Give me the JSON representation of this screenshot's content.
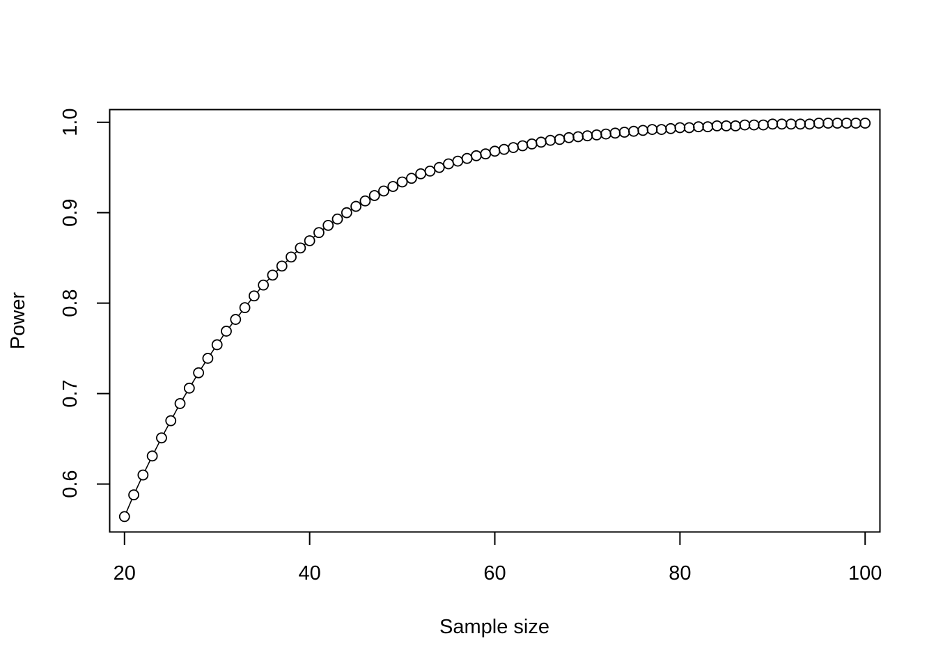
{
  "chart_data": {
    "type": "line",
    "title": "",
    "xlabel": "Sample size",
    "ylabel": "Power",
    "xlim": [
      18.4,
      101.6
    ],
    "ylim": [
      0.547,
      1.014
    ],
    "xticks": [
      20,
      40,
      60,
      80,
      100
    ],
    "xtick_labels": [
      "20",
      "40",
      "60",
      "80",
      "100"
    ],
    "yticks": [
      0.6,
      0.7,
      0.8,
      0.9,
      1.0
    ],
    "ytick_labels": [
      "0.6",
      "0.7",
      "0.8",
      "0.9",
      "1.0"
    ],
    "grid": false,
    "marker": "open-circle",
    "series": [
      {
        "color": "#000000",
        "x": [
          20,
          21,
          22,
          23,
          24,
          25,
          26,
          27,
          28,
          29,
          30,
          31,
          32,
          33,
          34,
          35,
          36,
          37,
          38,
          39,
          40,
          41,
          42,
          43,
          44,
          45,
          46,
          47,
          48,
          49,
          50,
          51,
          52,
          53,
          54,
          55,
          56,
          57,
          58,
          59,
          60,
          61,
          62,
          63,
          64,
          65,
          66,
          67,
          68,
          69,
          70,
          71,
          72,
          73,
          74,
          75,
          76,
          77,
          78,
          79,
          80,
          81,
          82,
          83,
          84,
          85,
          86,
          87,
          88,
          89,
          90,
          91,
          92,
          93,
          94,
          95,
          96,
          97,
          98,
          99,
          100
        ],
        "y": [
          0.564,
          0.588,
          0.61,
          0.631,
          0.651,
          0.67,
          0.689,
          0.706,
          0.723,
          0.739,
          0.754,
          0.769,
          0.782,
          0.795,
          0.808,
          0.82,
          0.831,
          0.841,
          0.851,
          0.861,
          0.869,
          0.878,
          0.886,
          0.893,
          0.9,
          0.907,
          0.913,
          0.919,
          0.924,
          0.929,
          0.934,
          0.938,
          0.943,
          0.946,
          0.95,
          0.954,
          0.957,
          0.96,
          0.963,
          0.965,
          0.968,
          0.97,
          0.972,
          0.974,
          0.976,
          0.978,
          0.98,
          0.981,
          0.983,
          0.984,
          0.985,
          0.986,
          0.987,
          0.988,
          0.989,
          0.99,
          0.991,
          0.992,
          0.992,
          0.993,
          0.994,
          0.994,
          0.995,
          0.995,
          0.996,
          0.996,
          0.996,
          0.997,
          0.997,
          0.997,
          0.998,
          0.998,
          0.998,
          0.998,
          0.998,
          0.999,
          0.999,
          0.999,
          0.999,
          0.999,
          0.999
        ]
      }
    ]
  }
}
